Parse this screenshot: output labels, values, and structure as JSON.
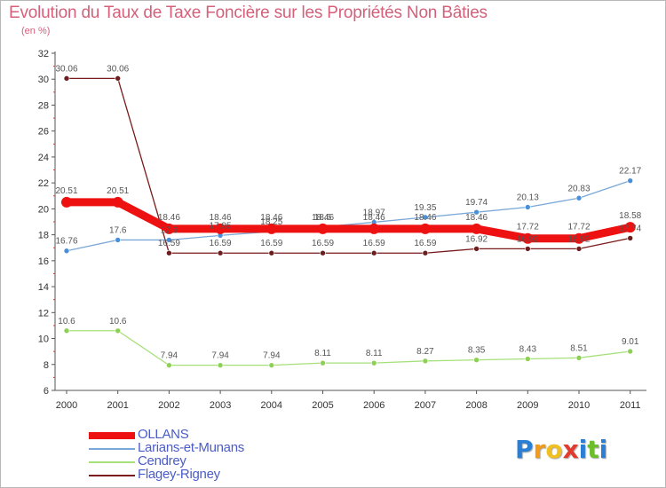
{
  "title": "Evolution du Taux de Taxe Foncière sur les Propriétés Non Bâties",
  "subtitle": "(en %)",
  "logo": {
    "letters": [
      "P",
      "r",
      "o",
      "x",
      "i",
      "t",
      "i"
    ],
    "colors": [
      "#2a7fd4",
      "#f29a1a",
      "#f0c020",
      "#e23b2e",
      "#2a7fd4",
      "#6cbf2a",
      "#2a7fd4"
    ]
  },
  "chart_data": {
    "type": "line",
    "title": "Evolution du Taux de Taxe Foncière sur les Propriétés Non Bâties",
    "ylabel": "(en %)",
    "xlabel": "",
    "categories": [
      "2000",
      "2001",
      "2002",
      "2003",
      "2004",
      "2005",
      "2006",
      "2007",
      "2008",
      "2009",
      "2010",
      "2011"
    ],
    "ylim": [
      6,
      32
    ],
    "yticks": [
      6,
      8,
      10,
      12,
      14,
      16,
      18,
      20,
      22,
      24,
      26,
      28,
      30,
      32
    ],
    "ytick_labels": [
      "6",
      "8",
      "10",
      "12",
      "14",
      "16",
      "18",
      "20",
      "22",
      "24",
      "26",
      "28",
      "30",
      "32"
    ],
    "grid": false,
    "legend_position": "bottom-left",
    "series": [
      {
        "name": "Flagey-Rigney",
        "color": "#7a1a1a",
        "marker": "#6b1e1e",
        "values": [
          30.06,
          30.06,
          16.59,
          16.59,
          16.59,
          16.59,
          16.59,
          16.59,
          16.92,
          16.92,
          16.92,
          17.74
        ],
        "labels": [
          "30.06",
          "30.06",
          "16.59",
          "16.59",
          "16.59",
          "16.59",
          "16.59",
          "16.59",
          "16.92",
          "16.92",
          "16.92",
          "17.74"
        ]
      },
      {
        "name": "Cendrey",
        "color": "#a6e07a",
        "marker": "#8ed055",
        "values": [
          10.6,
          10.6,
          7.94,
          7.94,
          7.94,
          8.11,
          8.11,
          8.27,
          8.35,
          8.43,
          8.51,
          9.01
        ],
        "labels": [
          "10.6",
          "10.6",
          "7.94",
          "7.94",
          "7.94",
          "8.11",
          "8.11",
          "8.27",
          "8.35",
          "8.43",
          "8.51",
          "9.01"
        ]
      },
      {
        "name": "Larians-et-Munans",
        "color": "#7aa8d8",
        "marker": "#4a90d9",
        "values": [
          16.76,
          17.6,
          17.6,
          17.95,
          18.25,
          18.6,
          18.97,
          19.35,
          19.74,
          20.13,
          20.83,
          22.17
        ],
        "labels": [
          "16.76",
          "17.6",
          "17.6",
          "17.95",
          "18.25",
          "18.6",
          "18.97",
          "19.35",
          "19.74",
          "20.13",
          "20.83",
          "22.17"
        ]
      },
      {
        "name": "OLLANS",
        "color": "#ee1111",
        "marker": "#ee1111",
        "values": [
          20.51,
          20.51,
          18.46,
          18.46,
          18.46,
          18.46,
          18.46,
          18.46,
          18.46,
          17.72,
          17.72,
          18.58
        ],
        "labels": [
          "20.51",
          "20.51",
          "18.46",
          "18.46",
          "18.46",
          "18.46",
          "18.46",
          "18.46",
          "18.46",
          "17.72",
          "17.72",
          "18.58"
        ]
      }
    ],
    "legend": [
      "OLLANS",
      "Larians-et-Munans",
      "Cendrey",
      "Flagey-Rigney"
    ]
  }
}
